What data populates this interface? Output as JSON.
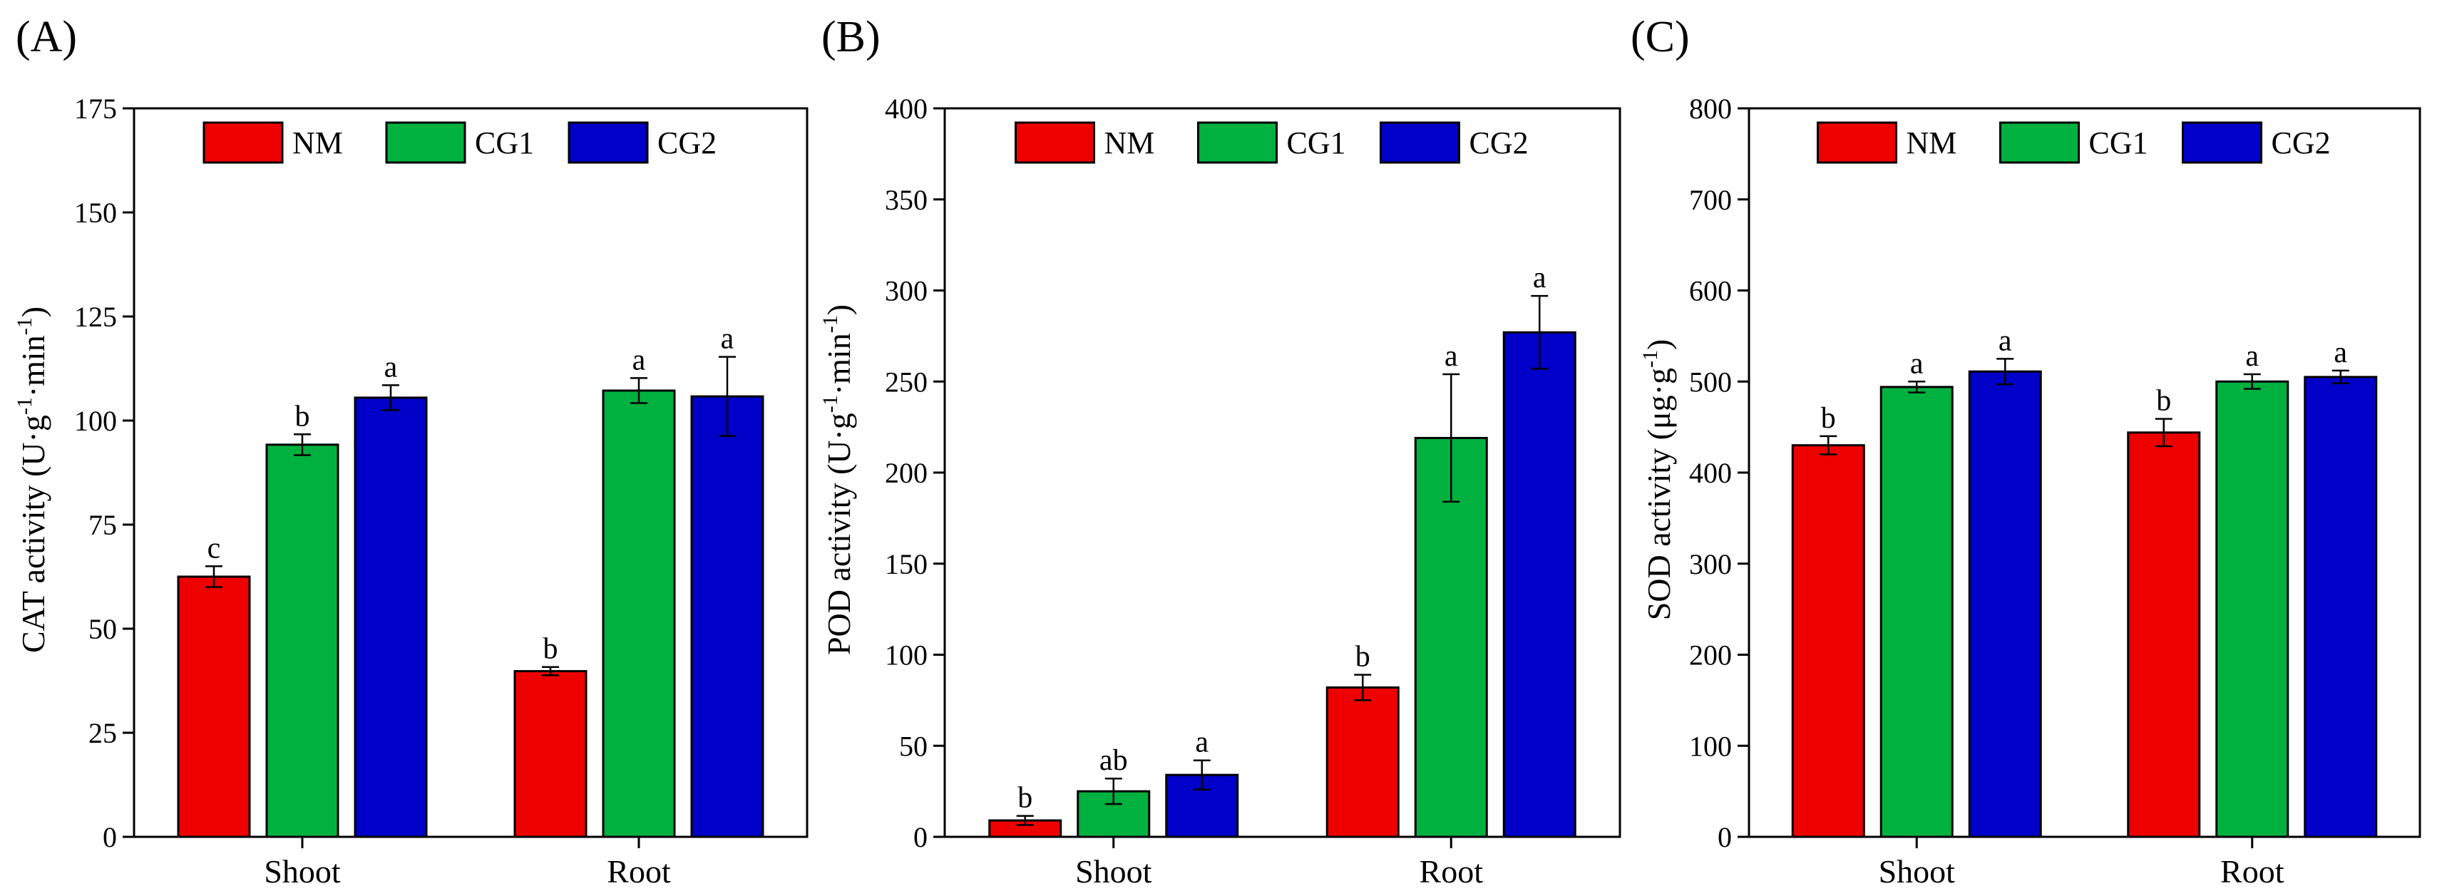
{
  "colors": {
    "NM": "#ee0000",
    "CG1": "#00b140",
    "CG2": "#0000c8"
  },
  "chart_data": [
    {
      "type": "bar",
      "panel_label": "(A)",
      "ylabel": {
        "text": "CAT activity (U·g",
        "sup1": "-1",
        "mid": "·min",
        "sup2": "-1",
        "end": ")"
      },
      "ylim": [
        0,
        175
      ],
      "yticks": [
        "0",
        "25",
        "50",
        "75",
        "100",
        "125",
        "150",
        "175"
      ],
      "categories": [
        "Shoot",
        "Root"
      ],
      "legend": {
        "placement": "top",
        "entries": [
          "NM",
          "CG1",
          "CG2"
        ]
      },
      "series": [
        {
          "name": "NM",
          "values": [
            62.5,
            39.8
          ],
          "errors": [
            2.5,
            1.0
          ],
          "labels": [
            "c",
            "b"
          ]
        },
        {
          "name": "CG1",
          "values": [
            94.2,
            107.2
          ],
          "errors": [
            2.5,
            3.0
          ],
          "labels": [
            "b",
            "a"
          ]
        },
        {
          "name": "CG2",
          "values": [
            105.5,
            105.8
          ],
          "errors": [
            3.0,
            9.5
          ],
          "labels": [
            "a",
            "a"
          ]
        }
      ]
    },
    {
      "type": "bar",
      "panel_label": "(B)",
      "ylabel": {
        "text": "POD activity (U·g",
        "sup1": "-1",
        "mid": "·min",
        "sup2": "-1",
        "end": ")"
      },
      "ylim": [
        0,
        400
      ],
      "yticks": [
        "0",
        "50",
        "100",
        "150",
        "200",
        "250",
        "300",
        "350",
        "400"
      ],
      "categories": [
        "Shoot",
        "Root"
      ],
      "legend": {
        "placement": "top",
        "entries": [
          "NM",
          "CG1",
          "CG2"
        ]
      },
      "series": [
        {
          "name": "NM",
          "values": [
            9,
            82
          ],
          "errors": [
            2.5,
            7
          ],
          "labels": [
            "b",
            "b"
          ]
        },
        {
          "name": "CG1",
          "values": [
            25,
            219
          ],
          "errors": [
            7,
            35
          ],
          "labels": [
            "ab",
            "a"
          ]
        },
        {
          "name": "CG2",
          "values": [
            34,
            277
          ],
          "errors": [
            8,
            20
          ],
          "labels": [
            "a",
            "a"
          ]
        }
      ]
    },
    {
      "type": "bar",
      "panel_label": "(C)",
      "ylabel": {
        "text": "SOD activity (μg·g",
        "sup1": "-1",
        "mid": "",
        "sup2": "",
        "end": ")"
      },
      "ylim": [
        0,
        800
      ],
      "yticks": [
        "0",
        "100",
        "200",
        "300",
        "400",
        "500",
        "600",
        "700",
        "800"
      ],
      "categories": [
        "Shoot",
        "Root"
      ],
      "legend": {
        "placement": "top",
        "entries": [
          "NM",
          "CG1",
          "CG2"
        ]
      },
      "series": [
        {
          "name": "NM",
          "values": [
            430,
            444
          ],
          "errors": [
            10,
            15
          ],
          "labels": [
            "b",
            "b"
          ]
        },
        {
          "name": "CG1",
          "values": [
            494,
            500
          ],
          "errors": [
            6,
            8
          ],
          "labels": [
            "a",
            "a"
          ]
        },
        {
          "name": "CG2",
          "values": [
            511,
            505
          ],
          "errors": [
            14,
            7
          ],
          "labels": [
            "a",
            "a"
          ]
        }
      ]
    }
  ]
}
